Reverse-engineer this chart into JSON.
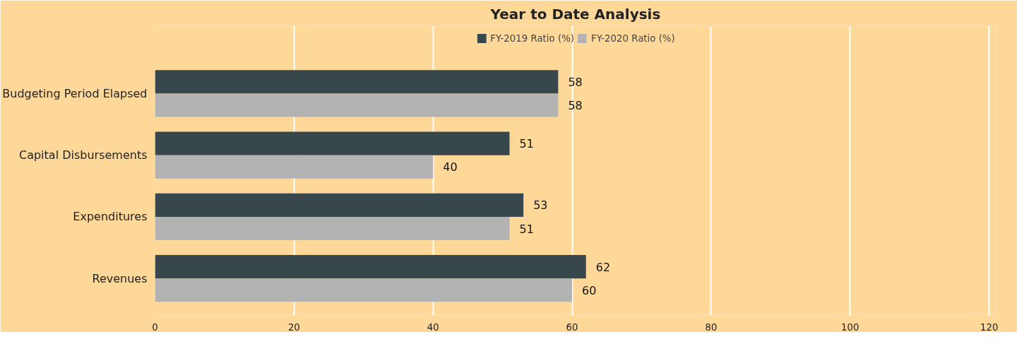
{
  "chart_data": {
    "type": "bar",
    "orientation": "horizontal",
    "title": "Year to Date Analysis",
    "categories": [
      "Budgeting Period Elapsed",
      "Capital Disbursements",
      "Expenditures",
      "Revenues"
    ],
    "series": [
      {
        "name": "FY-2019 Ratio (%)",
        "color": "#37474c",
        "values": [
          58,
          51,
          53,
          62
        ]
      },
      {
        "name": "FY-2020 Ratio (%)",
        "color": "#b3b3b3",
        "values": [
          58,
          40,
          51,
          60
        ]
      }
    ],
    "xlim": [
      0,
      121
    ],
    "xticks": [
      0,
      20,
      40,
      60,
      80,
      100,
      120
    ],
    "grid": "x",
    "legend": "top",
    "data_labels": true
  }
}
